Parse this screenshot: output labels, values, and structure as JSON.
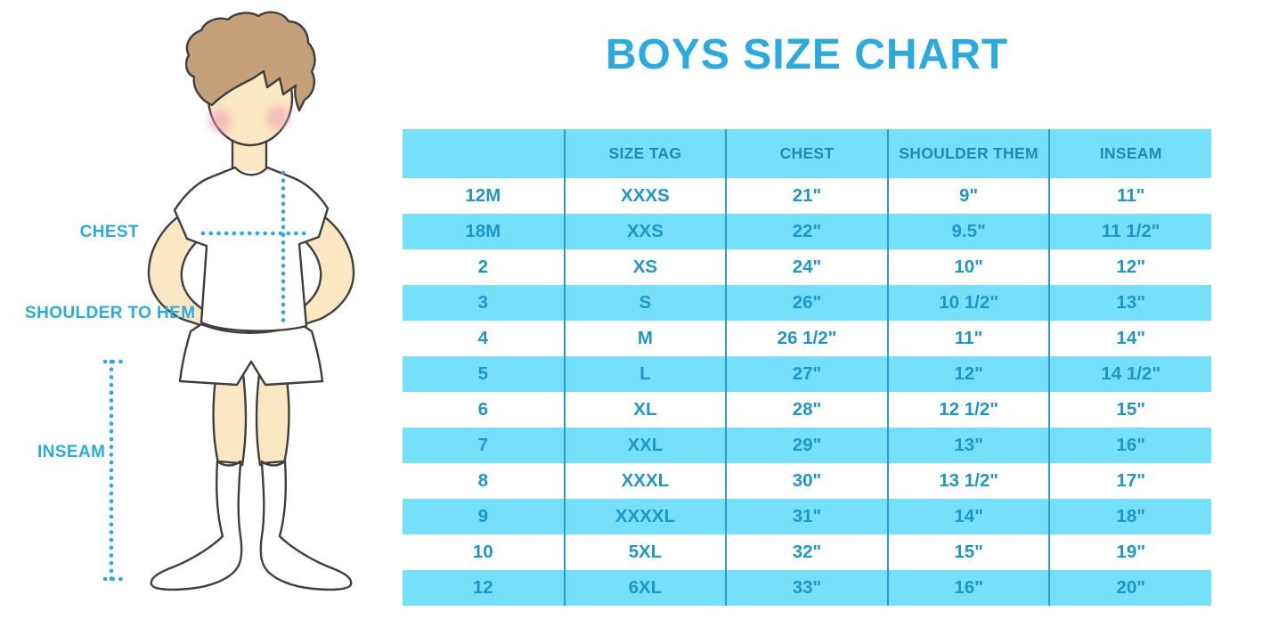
{
  "title": "BOYS SIZE CHART",
  "figure": {
    "labels": {
      "chest": "CHEST",
      "shoulder_to_hem": "SHOULDER TO HEM",
      "inseam": "INSEAM"
    }
  },
  "chart_data": {
    "type": "table",
    "title": "BOYS SIZE CHART",
    "columns": [
      "",
      "SIZE TAG",
      "CHEST",
      "SHOULDER THEM",
      "INSEAM"
    ],
    "rows": [
      [
        "12M",
        "XXXS",
        "21\"",
        "9\"",
        "11\""
      ],
      [
        "18M",
        "XXS",
        "22\"",
        "9.5\"",
        "11 1/2\""
      ],
      [
        "2",
        "XS",
        "24\"",
        "10\"",
        "12\""
      ],
      [
        "3",
        "S",
        "26\"",
        "10 1/2\"",
        "13\""
      ],
      [
        "4",
        "M",
        "26 1/2\"",
        "11\"",
        "14\""
      ],
      [
        "5",
        "L",
        "27\"",
        "12\"",
        "14 1/2\""
      ],
      [
        "6",
        "XL",
        "28\"",
        "12 1/2\"",
        "15\""
      ],
      [
        "7",
        "XXL",
        "29\"",
        "13\"",
        "16\""
      ],
      [
        "8",
        "XXXL",
        "30\"",
        "13 1/2\"",
        "17\""
      ],
      [
        "9",
        "XXXXL",
        "31\"",
        "14\"",
        "18\""
      ],
      [
        "10",
        "5XL",
        "32\"",
        "15\"",
        "19\""
      ],
      [
        "12",
        "6XL",
        "33\"",
        "16\"",
        "20\""
      ]
    ],
    "layout": {
      "alternating_row_fill": "light-blue/white",
      "grid": "vertical column dividers only",
      "legend": "none"
    }
  },
  "colors": {
    "accent": "#29ABE2",
    "row-blue": "#74E0FA",
    "divider": "#2D9CCD",
    "header-text": "#2387B6",
    "cell-text": "#1E96C8",
    "skin": "#FBE7C1",
    "hair": "#C4A178",
    "outline": "#3F3F3F",
    "cheek": "#EF9DB4"
  }
}
